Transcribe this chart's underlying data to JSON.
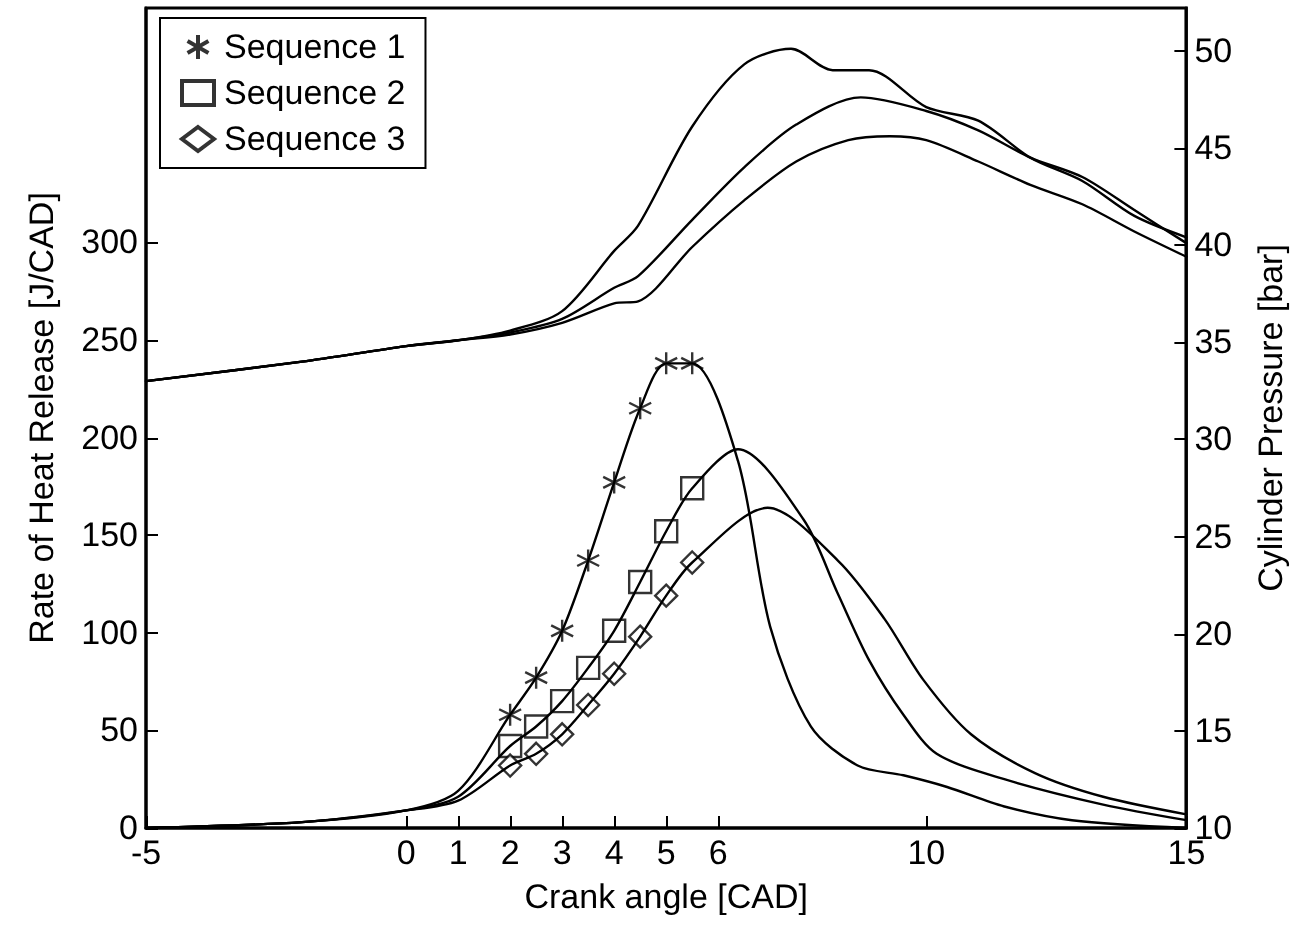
{
  "chart_data": {
    "type": "line",
    "xlabel": "Crank angle [CAD]",
    "ylabel": "Rate of Heat Release [J/CAD]",
    "y2label": "Cylinder Pressure [bar]",
    "xlim": [
      -5,
      15
    ],
    "xticks": [
      -5,
      0,
      1,
      2,
      3,
      4,
      5,
      6,
      10,
      15
    ],
    "ylim": [
      0,
      420
    ],
    "yticks": [
      0,
      50,
      100,
      150,
      200,
      250,
      300
    ],
    "y2lim": [
      10,
      52.2
    ],
    "y2ticks": [
      10,
      15,
      20,
      25,
      30,
      35,
      40,
      45,
      50
    ],
    "legend": "top left",
    "grid": false,
    "marker": "none",
    "line_style": "solid",
    "series": [
      {
        "name": "Sequence 1",
        "type": "scatter",
        "marker": "cross",
        "color": "#000000",
        "x": [
          2,
          2.5,
          3,
          3.5,
          4,
          4.5,
          5,
          5.5
        ],
        "values": [
          58,
          77,
          101,
          137,
          177,
          215,
          238,
          238
        ]
      },
      {
        "name": "Sequence 2",
        "type": "scatter",
        "marker": "square",
        "color": "#000000",
        "x": [
          2,
          2.5,
          3,
          3.5,
          4,
          4.5,
          5,
          5.5
        ],
        "values": [
          42,
          52,
          65,
          82,
          101,
          126,
          152,
          174
        ]
      },
      {
        "name": "Sequence 3",
        "type": "scatter",
        "marker": "diamond",
        "color": "#000000",
        "x": [
          2,
          2.5,
          3,
          3.5,
          4,
          4.5,
          5,
          5.5
        ],
        "values": [
          32,
          38,
          48,
          63,
          79,
          98,
          119,
          136
        ]
      },
      {
        "color": "#000000",
        "x": [
          -5,
          -2,
          0,
          1,
          2,
          2.5,
          3,
          3.5,
          4,
          4.5,
          5,
          5.5,
          6.38,
          7,
          7.78,
          8.68,
          9.56,
          10.4,
          11.5,
          12.8,
          15
        ],
        "values": [
          0,
          3,
          9,
          19,
          58,
          77,
          101,
          137,
          177,
          215,
          238,
          238,
          188,
          103,
          52,
          32,
          27,
          21,
          11,
          4,
          0
        ]
      },
      {
        "color": "#000000",
        "x": [
          -5,
          -2,
          0,
          1,
          2,
          2.5,
          3,
          3.5,
          4,
          4.5,
          5,
          5.5,
          6.38,
          7.64,
          8.3,
          8.9,
          9.56,
          10.2,
          11.5,
          13.4,
          15
        ],
        "values": [
          0,
          3,
          9,
          16,
          42,
          52,
          65,
          82,
          101,
          126,
          152,
          174,
          194,
          158,
          120,
          86,
          58,
          38,
          25,
          12,
          4
        ]
      },
      {
        "color": "#000000",
        "x": [
          -5,
          -2,
          0,
          1,
          2,
          2.5,
          3,
          3.5,
          4,
          4.5,
          5,
          5.5,
          6.95,
          8.3,
          9.2,
          9.94,
          10.86,
          12.1,
          13.4,
          15
        ],
        "values": [
          0,
          3,
          9,
          14,
          32,
          38,
          48,
          63,
          79,
          98,
          119,
          136,
          164,
          137,
          107,
          76,
          48,
          28,
          16,
          7
        ]
      },
      {
        "color": "#000000",
        "axis": "y2",
        "x": [
          -5,
          -2,
          0,
          1,
          2,
          3,
          4,
          4.46,
          5.5,
          6.5,
          7.4,
          8.2,
          8.9,
          10,
          11,
          12,
          13,
          14,
          15
        ],
        "values": [
          33.0,
          34.0,
          34.8,
          35.1,
          35.6,
          36.6,
          39.7,
          41.0,
          46.1,
          49.3,
          50.1,
          49.0,
          49.0,
          47.1,
          46.4,
          44.5,
          43.3,
          41.5,
          40.4
        ]
      },
      {
        "color": "#000000",
        "axis": "y2",
        "x": [
          -5,
          -2,
          0,
          1,
          2,
          3,
          4,
          4.46,
          5.5,
          6.5,
          7.5,
          8.74,
          10,
          11,
          12,
          13,
          14,
          15
        ],
        "values": [
          33.0,
          34.0,
          34.8,
          35.1,
          35.5,
          36.2,
          37.8,
          38.4,
          41.3,
          44.0,
          46.2,
          47.6,
          46.9,
          45.9,
          44.5,
          43.5,
          41.8,
          40.1
        ]
      },
      {
        "color": "#000000",
        "axis": "y2",
        "x": [
          -5,
          -2,
          0,
          1,
          2,
          3,
          4,
          4.46,
          5.5,
          6.5,
          7.5,
          8.5,
          9.3,
          10,
          11,
          12,
          13,
          14,
          15
        ],
        "values": [
          33.0,
          34.0,
          34.8,
          35.1,
          35.4,
          36.0,
          37.0,
          37.1,
          39.9,
          42.3,
          44.3,
          45.4,
          45.6,
          45.4,
          44.3,
          43.1,
          42.1,
          40.7,
          39.4
        ]
      }
    ]
  }
}
